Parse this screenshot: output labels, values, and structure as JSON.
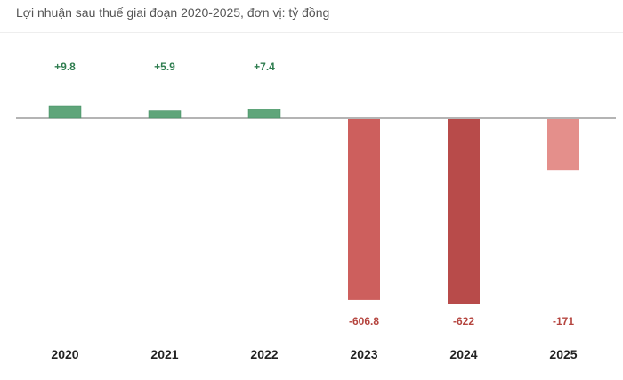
{
  "chart_data": {
    "type": "bar",
    "title": "Lợi nhuận sau thuế giai đoạn 2020-2025, đơn vị: tỷ đồng",
    "categories": [
      "2020",
      "2021",
      "2022",
      "2023",
      "2024",
      "2025"
    ],
    "values": [
      9.8,
      5.9,
      7.4,
      -606.8,
      -622,
      -171
    ],
    "data_labels": [
      "+9.8",
      "+5.9",
      "+7.4",
      "-606.8",
      "-622",
      "-171"
    ],
    "xlabel": "",
    "ylabel": "",
    "ylim": [
      -622,
      9.8
    ],
    "grid": false,
    "legend": "none",
    "colors": {
      "positive": "#5fa57a",
      "positive_label": "#2e7d4f",
      "negative_bars": [
        "#cd5f5d",
        "#b84b4a",
        "#e48f8b"
      ],
      "negative_label": "#b5453f",
      "baseline": "#888888"
    }
  }
}
